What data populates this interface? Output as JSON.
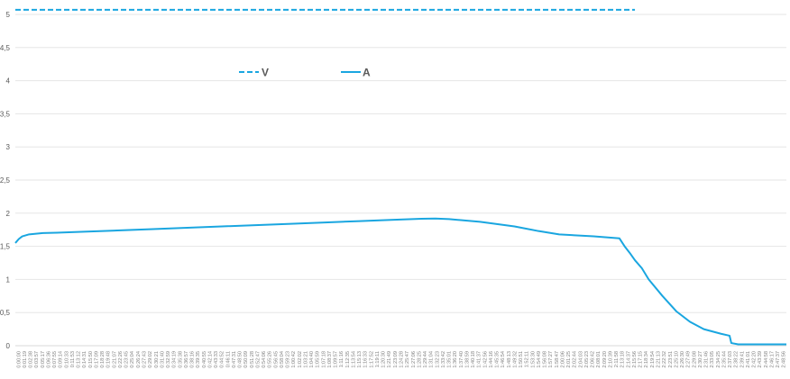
{
  "chart_data": {
    "type": "line",
    "title": "",
    "xlabel": "",
    "ylabel": "",
    "ylim": [
      0,
      5
    ],
    "y_ticks": [
      "0",
      "0,5",
      "1",
      "1,5",
      "2",
      "2,5",
      "3",
      "3,5",
      "4",
      "4,5",
      "5"
    ],
    "grid": true,
    "legend": "top-left",
    "series": [
      {
        "name": "V",
        "style": "dashed",
        "color": "#1aa6e0",
        "points": [
          [
            0,
            5.07
          ],
          [
            20,
            5.07
          ],
          [
            40,
            5.07
          ],
          [
            60,
            5.07
          ],
          [
            80,
            5.07
          ],
          [
            100,
            5.07
          ],
          [
            120,
            5.07
          ],
          [
            140,
            5.07
          ],
          [
            163.78,
            5.07
          ],
          [
            180,
            5.07
          ]
        ]
      },
      {
        "name": "A",
        "style": "solid",
        "color": "#1aa6e0",
        "points": [
          [
            0,
            1.55
          ],
          [
            1,
            1.61
          ],
          [
            2,
            1.65
          ],
          [
            4,
            1.68
          ],
          [
            6,
            1.69
          ],
          [
            8,
            1.7
          ],
          [
            12,
            1.705
          ],
          [
            20,
            1.72
          ],
          [
            40,
            1.76
          ],
          [
            60,
            1.8
          ],
          [
            80,
            1.84
          ],
          [
            90,
            1.86
          ],
          [
            100,
            1.88
          ],
          [
            110,
            1.9
          ],
          [
            118,
            1.915
          ],
          [
            122,
            1.92
          ],
          [
            126,
            1.91
          ],
          [
            135,
            1.87
          ],
          [
            145,
            1.8
          ],
          [
            152,
            1.73
          ],
          [
            158,
            1.68
          ],
          [
            168,
            1.65
          ],
          [
            175.5,
            1.62
          ],
          [
            177,
            1.5
          ],
          [
            178.5,
            1.4
          ],
          [
            180,
            1.29
          ],
          [
            182,
            1.17
          ],
          [
            184,
            1.0
          ],
          [
            188,
            0.75
          ],
          [
            192,
            0.52
          ],
          [
            196,
            0.36
          ],
          [
            200,
            0.25
          ],
          [
            205,
            0.18
          ],
          [
            207.5,
            0.15
          ],
          [
            208,
            0.04
          ],
          [
            210,
            0.02
          ],
          [
            224,
            0.02
          ]
        ]
      }
    ],
    "x_tick_labels": [
      "0:00:00",
      "0:01:19",
      "0:02:38",
      "0:03:57",
      "0:05:17",
      "0:06:36",
      "0:07:55",
      "0:09:14",
      "0:10:33",
      "0:11:53",
      "0:13:12",
      "0:14:31",
      "0:15:50",
      "0:17:09",
      "0:18:28",
      "0:19:48",
      "0:21:07",
      "0:22:26",
      "0:23:45",
      "0:25:04",
      "0:26:24",
      "0:27:43",
      "0:29:02",
      "0:30:21",
      "0:31:40",
      "0:32:59",
      "0:34:19",
      "0:35:38",
      "0:36:57",
      "0:38:16",
      "0:39:35",
      "0:40:55",
      "0:42:14",
      "0:43:33",
      "0:44:52",
      "0:46:11",
      "0:47:31",
      "0:48:50",
      "0:50:09",
      "0:51:28",
      "0:52:47",
      "0:54:06",
      "0:55:26",
      "0:56:45",
      "0:58:04",
      "0:59:23",
      "1:00:42",
      "1:02:02",
      "1:03:21",
      "1:04:40",
      "1:05:59",
      "1:07:18",
      "1:08:37",
      "1:09:57",
      "1:11:16",
      "1:12:35",
      "1:13:54",
      "1:15:13",
      "1:16:33",
      "1:17:52",
      "1:19:11",
      "1:20:30",
      "1:21:49",
      "1:23:09",
      "1:24:28",
      "1:25:47",
      "1:27:06",
      "1:28:25",
      "1:29:44",
      "1:31:04",
      "1:32:23",
      "1:33:42",
      "1:35:01",
      "1:36:20",
      "1:37:40",
      "1:38:59",
      "1:40:18",
      "1:41:37",
      "1:42:56",
      "1:44:16",
      "1:45:35",
      "1:46:54",
      "1:48:13",
      "1:49:32",
      "1:50:51",
      "1:52:11",
      "1:53:30",
      "1:54:49",
      "1:56:08",
      "1:57:27",
      "1:58:47",
      "2:00:06",
      "2:01:25",
      "2:02:44",
      "2:04:03",
      "2:05:23",
      "2:06:42",
      "2:08:01",
      "2:09:20",
      "2:10:39",
      "2:11:58",
      "2:13:18",
      "2:14:37",
      "2:15:56",
      "2:17:15",
      "2:18:34",
      "2:19:54",
      "2:21:13",
      "2:22:32",
      "2:23:51",
      "2:25:10",
      "2:26:30",
      "2:27:49",
      "2:29:08",
      "2:30:27",
      "2:31:46",
      "2:33:05",
      "2:34:25",
      "2:35:44",
      "2:37:03",
      "2:38:22",
      "2:39:41",
      "2:41:01",
      "2:42:20",
      "2:43:39",
      "2:44:58",
      "2:46:17",
      "2:47:37",
      "2:48:56"
    ]
  }
}
